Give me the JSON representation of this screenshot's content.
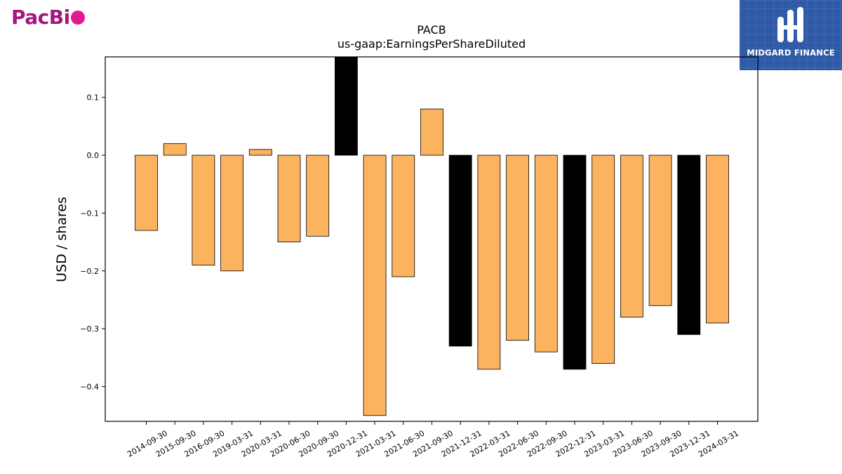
{
  "logos": {
    "left_text": "PacBi",
    "right_text": "MIDGARD FINANCE"
  },
  "colors": {
    "bar_default": "#fbb360",
    "bar_highlight": "#000000",
    "edge": "#000000",
    "logo_left": "#a3177d",
    "logo_left_dot": "#e2198f",
    "logo_right_bg": "#2e5aa8"
  },
  "chart_data": {
    "type": "bar",
    "title": "PACB",
    "subtitle": "us-gaap:EarningsPerShareDiluted",
    "xlabel": "",
    "ylabel": "USD / shares",
    "ylim": [
      -0.46,
      0.17
    ],
    "yticks": [
      0.1,
      0.0,
      -0.1,
      -0.2,
      -0.3,
      -0.4
    ],
    "grid": false,
    "categories": [
      "2014-09-30",
      "2015-09-30",
      "2016-09-30",
      "2019-03-31",
      "2020-03-31",
      "2020-06-30",
      "2020-09-30",
      "2020-12-31",
      "2021-03-31",
      "2021-06-30",
      "2021-09-30",
      "2021-12-31",
      "2022-03-31",
      "2022-06-30",
      "2022-09-30",
      "2022-12-31",
      "2023-03-31",
      "2023-06-30",
      "2023-09-30",
      "2023-12-31",
      "2024-03-31"
    ],
    "values": [
      -0.13,
      0.02,
      -0.19,
      -0.2,
      0.01,
      -0.15,
      -0.14,
      0.17,
      -0.45,
      -0.21,
      0.08,
      -0.33,
      -0.37,
      -0.32,
      -0.34,
      -0.37,
      -0.36,
      -0.28,
      -0.26,
      -0.31,
      -0.29
    ],
    "highlight": [
      false,
      false,
      false,
      false,
      false,
      false,
      false,
      true,
      false,
      false,
      false,
      true,
      false,
      false,
      false,
      true,
      false,
      false,
      false,
      true,
      false
    ]
  }
}
